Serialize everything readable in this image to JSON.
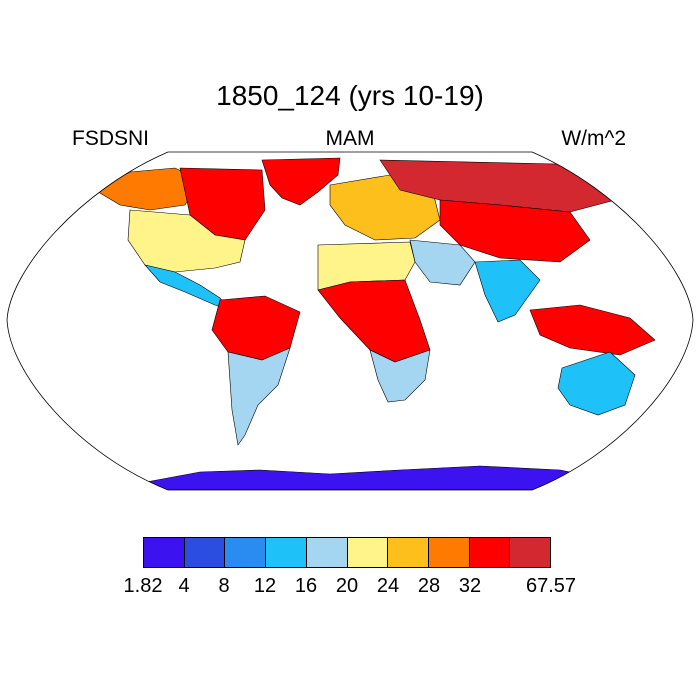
{
  "title": "1850_124 (yrs 10-19)",
  "left_label": "FSDSNI",
  "center_label": "MAM",
  "right_label": "W/m^2",
  "colorbar": {
    "colors": [
      "#3c13f0",
      "#2c4ee0",
      "#2a8bf0",
      "#1ec2f8",
      "#a4d6f2",
      "#fff48a",
      "#fdbf1c",
      "#ff7a00",
      "#ff0000",
      "#d42830"
    ],
    "labels": [
      "1.82",
      "4",
      "8",
      "12",
      "16",
      "20",
      "24",
      "28",
      "32",
      "67.57"
    ]
  },
  "regions": [
    {
      "name": "greenland",
      "level": 8
    },
    {
      "name": "canada-east",
      "level": 8
    },
    {
      "name": "alaska",
      "level": 7
    },
    {
      "name": "usa",
      "level": 5
    },
    {
      "name": "mexico",
      "level": 3
    },
    {
      "name": "amazon",
      "level": 8
    },
    {
      "name": "south-america-south",
      "level": 4
    },
    {
      "name": "europe",
      "level": 6
    },
    {
      "name": "siberia",
      "level": 9
    },
    {
      "name": "central-asia",
      "level": 8
    },
    {
      "name": "middle-east",
      "level": 4
    },
    {
      "name": "india",
      "level": 3
    },
    {
      "name": "central-africa",
      "level": 8
    },
    {
      "name": "southern-africa",
      "level": 4
    },
    {
      "name": "sahara",
      "level": 5
    },
    {
      "name": "indonesia",
      "level": 8
    },
    {
      "name": "australia",
      "level": 3
    },
    {
      "name": "antarctica",
      "level": 0
    }
  ]
}
